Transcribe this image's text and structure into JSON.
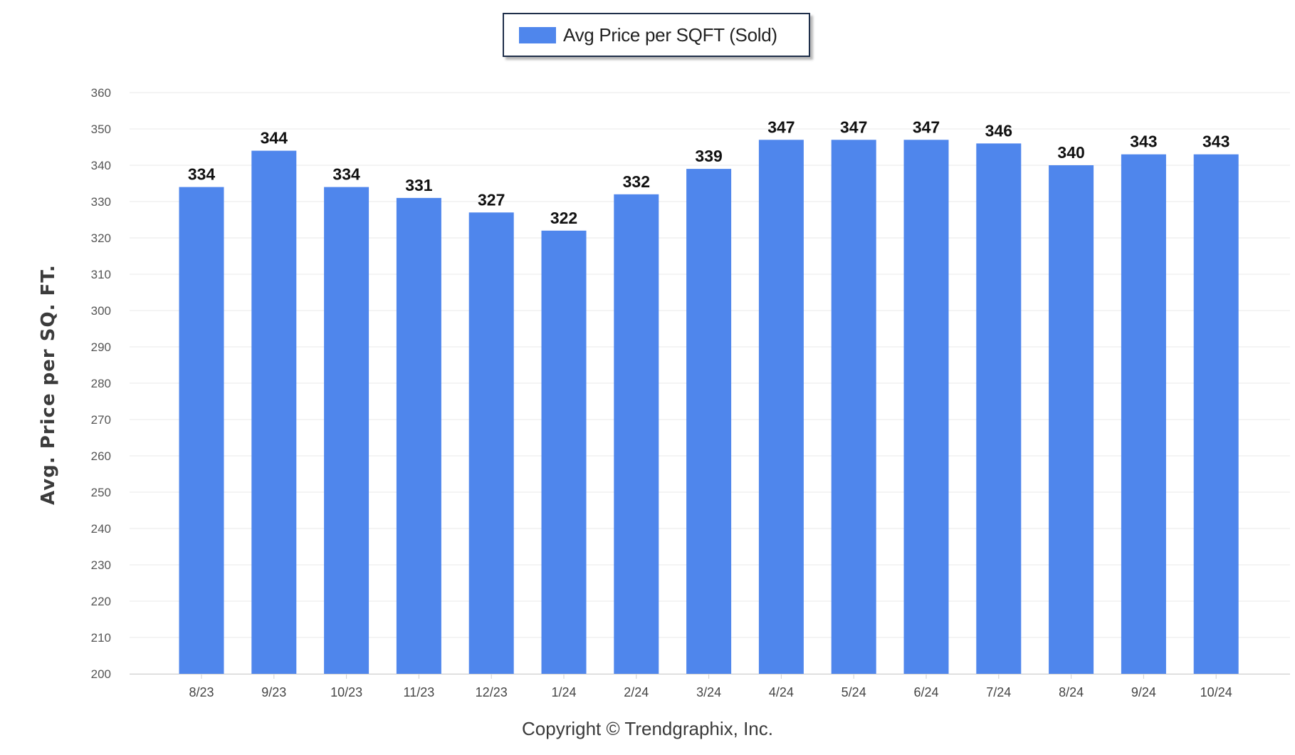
{
  "chart_data": {
    "type": "bar",
    "categories": [
      "8/23",
      "9/23",
      "10/23",
      "11/23",
      "12/23",
      "1/24",
      "2/24",
      "3/24",
      "4/24",
      "5/24",
      "6/24",
      "7/24",
      "8/24",
      "9/24",
      "10/24"
    ],
    "series": [
      {
        "name": "Avg Price per SQFT (Sold)",
        "values": [
          334,
          344,
          334,
          331,
          327,
          322,
          332,
          339,
          347,
          347,
          347,
          346,
          340,
          343,
          343
        ]
      }
    ],
    "ylabel": "Avg. Price per SQ. FT.",
    "xlabel": "",
    "ylim": [
      200,
      360
    ],
    "yticks": [
      200,
      210,
      220,
      230,
      240,
      250,
      260,
      270,
      280,
      290,
      300,
      310,
      320,
      330,
      340,
      350,
      360
    ],
    "grid": true,
    "legend_position": "top-center",
    "bar_color": "#4f86ec"
  },
  "footer": "Copyright © Trendgraphix, Inc."
}
